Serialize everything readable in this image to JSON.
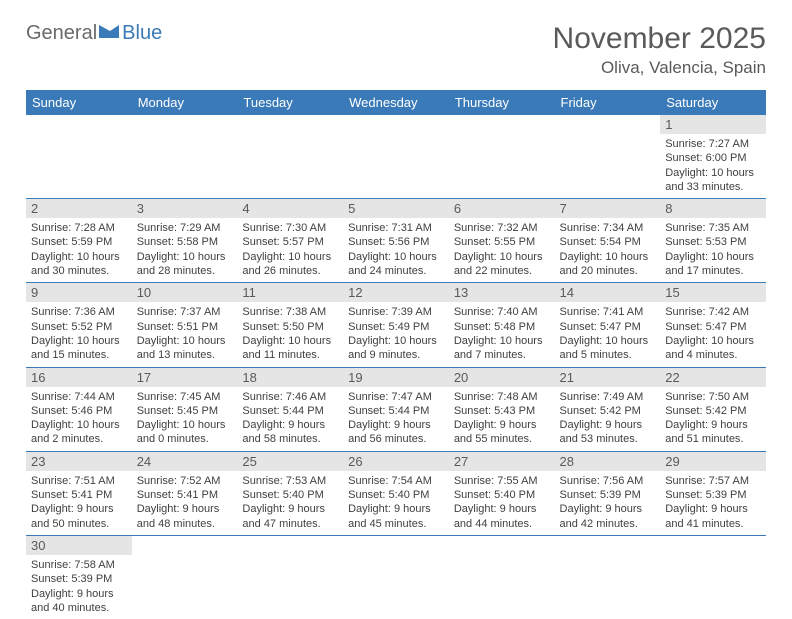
{
  "logo": {
    "word1": "General",
    "word2": "Blue"
  },
  "title": "November 2025",
  "location": "Oliva, Valencia, Spain",
  "colors": {
    "header_bg": "#3a7ab8",
    "header_text": "#ffffff",
    "daynum_bg": "#e5e5e5",
    "text_gray": "#5a5a5a",
    "body_text": "#404040",
    "border": "#3a7ab8",
    "page_bg": "#ffffff"
  },
  "typography": {
    "title_fontsize": 30,
    "location_fontsize": 17,
    "dayhead_fontsize": 13,
    "daynum_fontsize": 13,
    "body_fontsize": 11,
    "logo_fontsize": 20
  },
  "day_headers": [
    "Sunday",
    "Monday",
    "Tuesday",
    "Wednesday",
    "Thursday",
    "Friday",
    "Saturday"
  ],
  "grid": {
    "rows": 6,
    "cols": 7,
    "first_day_col": 6
  },
  "days": [
    {
      "n": "1",
      "sunrise": "Sunrise: 7:27 AM",
      "sunset": "Sunset: 6:00 PM",
      "daylight": "Daylight: 10 hours and 33 minutes."
    },
    {
      "n": "2",
      "sunrise": "Sunrise: 7:28 AM",
      "sunset": "Sunset: 5:59 PM",
      "daylight": "Daylight: 10 hours and 30 minutes."
    },
    {
      "n": "3",
      "sunrise": "Sunrise: 7:29 AM",
      "sunset": "Sunset: 5:58 PM",
      "daylight": "Daylight: 10 hours and 28 minutes."
    },
    {
      "n": "4",
      "sunrise": "Sunrise: 7:30 AM",
      "sunset": "Sunset: 5:57 PM",
      "daylight": "Daylight: 10 hours and 26 minutes."
    },
    {
      "n": "5",
      "sunrise": "Sunrise: 7:31 AM",
      "sunset": "Sunset: 5:56 PM",
      "daylight": "Daylight: 10 hours and 24 minutes."
    },
    {
      "n": "6",
      "sunrise": "Sunrise: 7:32 AM",
      "sunset": "Sunset: 5:55 PM",
      "daylight": "Daylight: 10 hours and 22 minutes."
    },
    {
      "n": "7",
      "sunrise": "Sunrise: 7:34 AM",
      "sunset": "Sunset: 5:54 PM",
      "daylight": "Daylight: 10 hours and 20 minutes."
    },
    {
      "n": "8",
      "sunrise": "Sunrise: 7:35 AM",
      "sunset": "Sunset: 5:53 PM",
      "daylight": "Daylight: 10 hours and 17 minutes."
    },
    {
      "n": "9",
      "sunrise": "Sunrise: 7:36 AM",
      "sunset": "Sunset: 5:52 PM",
      "daylight": "Daylight: 10 hours and 15 minutes."
    },
    {
      "n": "10",
      "sunrise": "Sunrise: 7:37 AM",
      "sunset": "Sunset: 5:51 PM",
      "daylight": "Daylight: 10 hours and 13 minutes."
    },
    {
      "n": "11",
      "sunrise": "Sunrise: 7:38 AM",
      "sunset": "Sunset: 5:50 PM",
      "daylight": "Daylight: 10 hours and 11 minutes."
    },
    {
      "n": "12",
      "sunrise": "Sunrise: 7:39 AM",
      "sunset": "Sunset: 5:49 PM",
      "daylight": "Daylight: 10 hours and 9 minutes."
    },
    {
      "n": "13",
      "sunrise": "Sunrise: 7:40 AM",
      "sunset": "Sunset: 5:48 PM",
      "daylight": "Daylight: 10 hours and 7 minutes."
    },
    {
      "n": "14",
      "sunrise": "Sunrise: 7:41 AM",
      "sunset": "Sunset: 5:47 PM",
      "daylight": "Daylight: 10 hours and 5 minutes."
    },
    {
      "n": "15",
      "sunrise": "Sunrise: 7:42 AM",
      "sunset": "Sunset: 5:47 PM",
      "daylight": "Daylight: 10 hours and 4 minutes."
    },
    {
      "n": "16",
      "sunrise": "Sunrise: 7:44 AM",
      "sunset": "Sunset: 5:46 PM",
      "daylight": "Daylight: 10 hours and 2 minutes."
    },
    {
      "n": "17",
      "sunrise": "Sunrise: 7:45 AM",
      "sunset": "Sunset: 5:45 PM",
      "daylight": "Daylight: 10 hours and 0 minutes."
    },
    {
      "n": "18",
      "sunrise": "Sunrise: 7:46 AM",
      "sunset": "Sunset: 5:44 PM",
      "daylight": "Daylight: 9 hours and 58 minutes."
    },
    {
      "n": "19",
      "sunrise": "Sunrise: 7:47 AM",
      "sunset": "Sunset: 5:44 PM",
      "daylight": "Daylight: 9 hours and 56 minutes."
    },
    {
      "n": "20",
      "sunrise": "Sunrise: 7:48 AM",
      "sunset": "Sunset: 5:43 PM",
      "daylight": "Daylight: 9 hours and 55 minutes."
    },
    {
      "n": "21",
      "sunrise": "Sunrise: 7:49 AM",
      "sunset": "Sunset: 5:42 PM",
      "daylight": "Daylight: 9 hours and 53 minutes."
    },
    {
      "n": "22",
      "sunrise": "Sunrise: 7:50 AM",
      "sunset": "Sunset: 5:42 PM",
      "daylight": "Daylight: 9 hours and 51 minutes."
    },
    {
      "n": "23",
      "sunrise": "Sunrise: 7:51 AM",
      "sunset": "Sunset: 5:41 PM",
      "daylight": "Daylight: 9 hours and 50 minutes."
    },
    {
      "n": "24",
      "sunrise": "Sunrise: 7:52 AM",
      "sunset": "Sunset: 5:41 PM",
      "daylight": "Daylight: 9 hours and 48 minutes."
    },
    {
      "n": "25",
      "sunrise": "Sunrise: 7:53 AM",
      "sunset": "Sunset: 5:40 PM",
      "daylight": "Daylight: 9 hours and 47 minutes."
    },
    {
      "n": "26",
      "sunrise": "Sunrise: 7:54 AM",
      "sunset": "Sunset: 5:40 PM",
      "daylight": "Daylight: 9 hours and 45 minutes."
    },
    {
      "n": "27",
      "sunrise": "Sunrise: 7:55 AM",
      "sunset": "Sunset: 5:40 PM",
      "daylight": "Daylight: 9 hours and 44 minutes."
    },
    {
      "n": "28",
      "sunrise": "Sunrise: 7:56 AM",
      "sunset": "Sunset: 5:39 PM",
      "daylight": "Daylight: 9 hours and 42 minutes."
    },
    {
      "n": "29",
      "sunrise": "Sunrise: 7:57 AM",
      "sunset": "Sunset: 5:39 PM",
      "daylight": "Daylight: 9 hours and 41 minutes."
    },
    {
      "n": "30",
      "sunrise": "Sunrise: 7:58 AM",
      "sunset": "Sunset: 5:39 PM",
      "daylight": "Daylight: 9 hours and 40 minutes."
    }
  ]
}
